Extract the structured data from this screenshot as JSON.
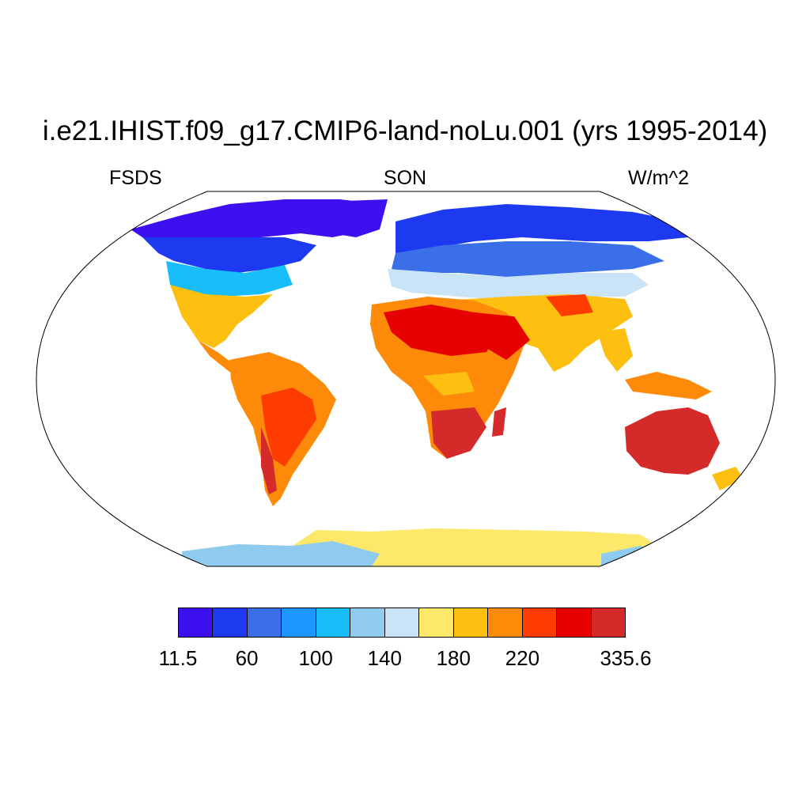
{
  "title": "i.e21.IHIST.f09_g17.CMIP6-land-noLu.001 (yrs 1995-2014)",
  "left_label": "FSDS",
  "center_label": "SON",
  "right_label": "W/m^2",
  "projection": "robinson",
  "colorbar": {
    "colors": [
      "#3d10f0",
      "#1e3af0",
      "#3a6fe8",
      "#1e96ff",
      "#18bdfa",
      "#8ecbee",
      "#c8e4f6",
      "#fde86a",
      "#fdc010",
      "#fe8a0a",
      "#fe3c00",
      "#e60000",
      "#d42a2a"
    ],
    "labels": [
      "11.5",
      "60",
      "100",
      "140",
      "180",
      "220",
      "335.6"
    ]
  }
}
